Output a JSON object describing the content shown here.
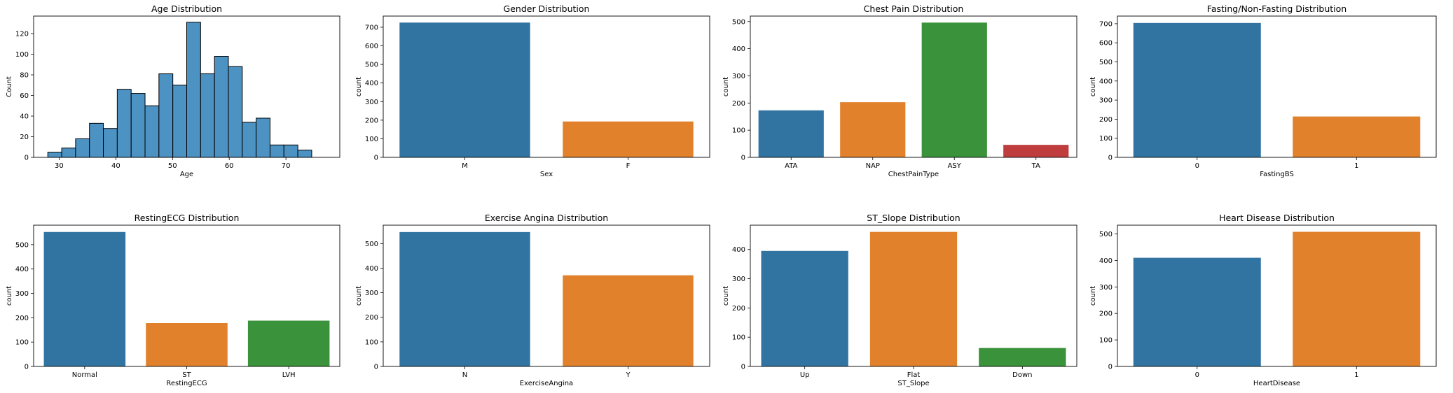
{
  "chart_data": [
    {
      "type": "bar",
      "subtype": "histogram",
      "title": "Age Distribution",
      "xlabel": "Age",
      "ylabel": "Count",
      "xlim": [
        25.5,
        79.5
      ],
      "ylim": [
        0,
        137
      ],
      "xticks": [
        30,
        40,
        50,
        60,
        70
      ],
      "yticks": [
        0,
        20,
        40,
        60,
        80,
        100,
        120
      ],
      "bin_edges": [
        28,
        30.45,
        32.9,
        35.35,
        37.8,
        40.25,
        42.7,
        45.15,
        47.6,
        50.05,
        52.5,
        54.95,
        57.4,
        59.85,
        62.3,
        64.75,
        67.2,
        69.65,
        72.1,
        74.55,
        77
      ],
      "values": [
        5,
        9,
        18,
        33,
        28,
        66,
        62,
        50,
        81,
        70,
        131,
        81,
        98,
        88,
        34,
        38,
        12,
        12,
        7,
        0
      ],
      "color": "#4c92c3"
    },
    {
      "type": "bar",
      "title": "Gender Distribution",
      "xlabel": "Sex",
      "ylabel": "count",
      "categories": [
        "M",
        "F"
      ],
      "values": [
        725,
        193
      ],
      "ylim": [
        0,
        760
      ],
      "yticks": [
        0,
        100,
        200,
        300,
        400,
        500,
        600,
        700
      ],
      "colors": [
        "#3274a1",
        "#e1812c"
      ]
    },
    {
      "type": "bar",
      "title": "Chest Pain Distribution",
      "xlabel": "ChestPainType",
      "ylabel": "count",
      "categories": [
        "ATA",
        "NAP",
        "ASY",
        "TA"
      ],
      "values": [
        173,
        203,
        496,
        46
      ],
      "ylim": [
        0,
        520
      ],
      "yticks": [
        0,
        100,
        200,
        300,
        400,
        500
      ],
      "colors": [
        "#3274a1",
        "#e1812c",
        "#3a923a",
        "#c03d3e"
      ]
    },
    {
      "type": "bar",
      "title": "Fasting/Non-Fasting Distribution",
      "xlabel": "FastingBS",
      "ylabel": "count",
      "categories": [
        "0",
        "1"
      ],
      "values": [
        704,
        214
      ],
      "ylim": [
        0,
        740
      ],
      "yticks": [
        0,
        100,
        200,
        300,
        400,
        500,
        600,
        700
      ],
      "colors": [
        "#3274a1",
        "#e1812c"
      ]
    },
    {
      "type": "bar",
      "title": "RestingECG Distribution",
      "xlabel": "RestingECG",
      "ylabel": "count",
      "categories": [
        "Normal",
        "ST",
        "LVH"
      ],
      "values": [
        552,
        178,
        188
      ],
      "ylim": [
        0,
        580
      ],
      "yticks": [
        0,
        100,
        200,
        300,
        400,
        500
      ],
      "colors": [
        "#3274a1",
        "#e1812c",
        "#3a923a"
      ]
    },
    {
      "type": "bar",
      "title": "Exercise Angina Distribution",
      "xlabel": "ExerciseAngina",
      "ylabel": "count",
      "categories": [
        "N",
        "Y"
      ],
      "values": [
        547,
        371
      ],
      "ylim": [
        0,
        575
      ],
      "yticks": [
        0,
        100,
        200,
        300,
        400,
        500
      ],
      "colors": [
        "#3274a1",
        "#e1812c"
      ]
    },
    {
      "type": "bar",
      "title": "ST_Slope Distribution",
      "xlabel": "ST_Slope",
      "ylabel": "count",
      "categories": [
        "Up",
        "Flat",
        "Down"
      ],
      "values": [
        395,
        460,
        63
      ],
      "ylim": [
        0,
        483
      ],
      "yticks": [
        0,
        100,
        200,
        300,
        400
      ],
      "colors": [
        "#3274a1",
        "#e1812c",
        "#3a923a"
      ]
    },
    {
      "type": "bar",
      "title": "Heart Disease Distribution",
      "xlabel": "HeartDisease",
      "ylabel": "count",
      "categories": [
        "0",
        "1"
      ],
      "values": [
        410,
        508
      ],
      "ylim": [
        0,
        533
      ],
      "yticks": [
        0,
        100,
        200,
        300,
        400,
        500
      ],
      "colors": [
        "#3274a1",
        "#e1812c"
      ]
    }
  ]
}
